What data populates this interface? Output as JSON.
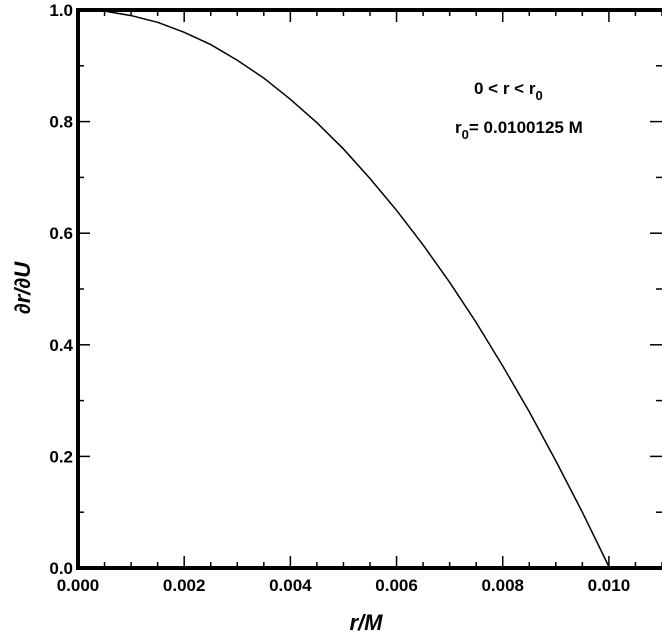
{
  "chart_data": {
    "type": "line",
    "xlabel": "r/M",
    "ylabel": "∂r/∂U",
    "xlim": [
      0.0,
      0.011
    ],
    "ylim": [
      0.0,
      1.0
    ],
    "grid": false,
    "x_ticks": [
      "0.000",
      "0.002",
      "0.004",
      "0.006",
      "0.008",
      "0.010"
    ],
    "y_ticks": [
      "0.0",
      "0.2",
      "0.4",
      "0.6",
      "0.8",
      "1.0"
    ],
    "annotations": {
      "line1": "0 < r < r",
      "line1_sub": "0",
      "line2_base": "r",
      "line2_sub": "0",
      "line2_rest": "= 0.0100125 M"
    },
    "series": [
      {
        "x": [
          0.0,
          0.0005,
          0.001,
          0.0015,
          0.002,
          0.0025,
          0.003,
          0.0035,
          0.004,
          0.0045,
          0.005,
          0.0055,
          0.006,
          0.0065,
          0.007,
          0.0075,
          0.008,
          0.0085,
          0.009,
          0.0095,
          0.0100125
        ],
        "values": [
          1.0,
          0.998,
          0.99,
          0.978,
          0.96,
          0.938,
          0.91,
          0.878,
          0.84,
          0.798,
          0.751,
          0.698,
          0.641,
          0.579,
          0.512,
          0.44,
          0.362,
          0.28,
          0.192,
          0.1,
          0.0
        ]
      }
    ]
  }
}
